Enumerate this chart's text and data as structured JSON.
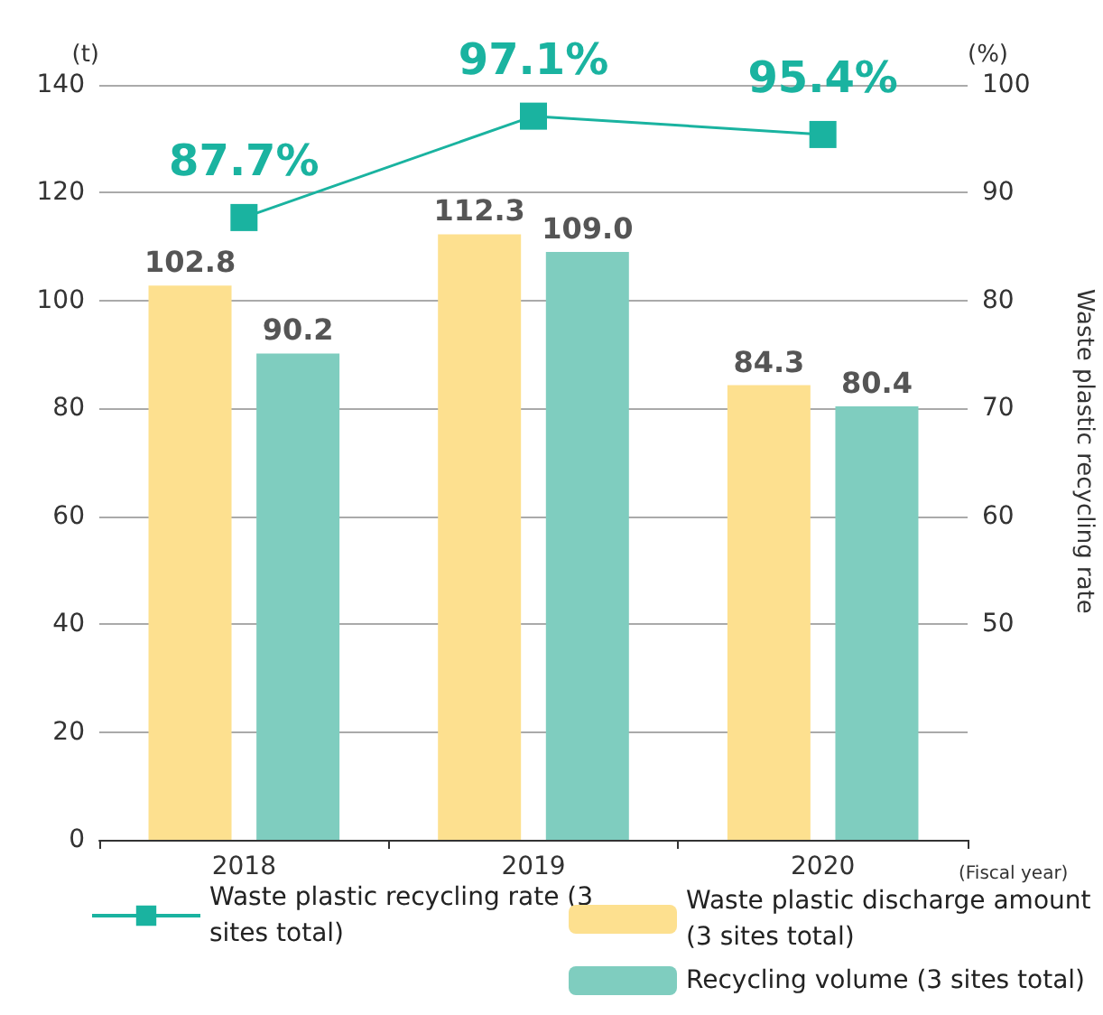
{
  "chart_data": {
    "type": "bar",
    "categories": [
      "2018",
      "2019",
      "2020"
    ],
    "xlabel": "(Fiscal year)",
    "ylabel": "(t)",
    "y2label": "(%)",
    "annotations": [
      "Waste plastic recycling rate"
    ],
    "ylim": [
      0,
      140
    ],
    "yticks": [
      0,
      20,
      40,
      60,
      80,
      100,
      120,
      140
    ],
    "y2lim": [
      30,
      100
    ],
    "y2ticks": [
      50,
      60,
      70,
      80,
      90,
      100
    ],
    "grid": "y",
    "legend": "bottom",
    "series": [
      {
        "name": "Waste plastic recycling rate (3 sites total)",
        "type": "line",
        "axis": "y2",
        "color": "#1ab3a0",
        "marker": "square",
        "values": [
          87.7,
          97.1,
          95.4
        ],
        "value_labels": [
          "87.7%",
          "97.1%",
          "95.4%"
        ]
      },
      {
        "name": "Waste plastic discharge amount (3 sites total)",
        "color": "#fde08f",
        "values": [
          102.8,
          112.3,
          84.3
        ],
        "value_labels": [
          "102.8",
          "112.3",
          "84.3"
        ]
      },
      {
        "name": "Recycling volume (3 sites total)",
        "color": "#7fcdbf",
        "values": [
          90.2,
          109.0,
          80.4
        ],
        "value_labels": [
          "90.2",
          "109.0",
          "80.4"
        ]
      }
    ]
  }
}
